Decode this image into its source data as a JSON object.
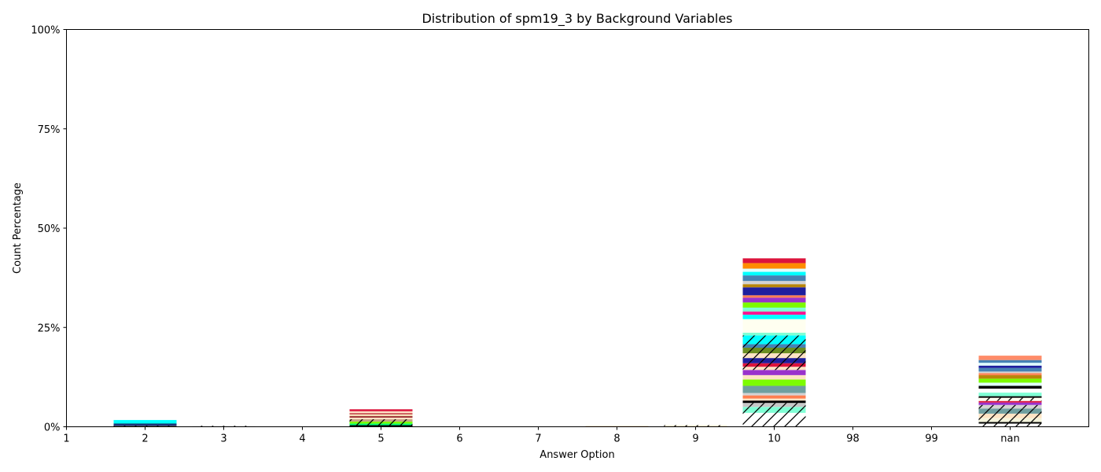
{
  "chart_data": {
    "type": "bar",
    "stacked": true,
    "title": "Distribution of spm19_3 by Background Variables",
    "xlabel": "Answer Option",
    "ylabel": "Count Percentage",
    "x_ticks": [
      "1",
      "2",
      "3",
      "4",
      "5",
      "6",
      "7",
      "8",
      "9",
      "10",
      "98",
      "99",
      "nan"
    ],
    "y_ticks": [
      "0%",
      "25%",
      "50%",
      "75%",
      "100%"
    ],
    "ylim": [
      0,
      100
    ],
    "grid": false,
    "bars": [
      {
        "category": "2",
        "segments": [
          {
            "value": 0.3,
            "color": "#555555",
            "hatch": true
          },
          {
            "value": 0.3,
            "color": "#1f3a93"
          },
          {
            "value": 0.2,
            "color": "#0a1a4a"
          },
          {
            "value": 0.9,
            "color": "#00ffff"
          }
        ]
      },
      {
        "category": "3",
        "segments": [
          {
            "value": 0.25,
            "color": "#f5f5f5",
            "hatch": true
          }
        ]
      },
      {
        "category": "5",
        "segments": [
          {
            "value": 0.4,
            "color": "#000000",
            "hatch": true
          },
          {
            "value": 0.4,
            "color": "#00ff7f",
            "hatch": true
          },
          {
            "value": 0.5,
            "color": "#7cfc00",
            "hatch": true
          },
          {
            "value": 0.6,
            "color": "#c4a484",
            "hatch": true
          },
          {
            "value": 0.4,
            "color": "#ffe4c4"
          },
          {
            "value": 0.4,
            "color": "#9b2d30"
          },
          {
            "value": 0.4,
            "color": "#f5deb3"
          },
          {
            "value": 0.4,
            "color": "#cd5c5c"
          },
          {
            "value": 0.4,
            "color": "#ffe4c4"
          },
          {
            "value": 0.5,
            "color": "#dc143c"
          }
        ]
      },
      {
        "category": "8",
        "segments": [
          {
            "value": 0.2,
            "color": "#f4c49a"
          }
        ]
      },
      {
        "category": "9",
        "segments": [
          {
            "value": 0.4,
            "color": "#fff3d6",
            "hatch": true
          }
        ]
      },
      {
        "category": "10",
        "segments": [
          {
            "value": 3.5,
            "color": "#ffffff",
            "hatch": true
          },
          {
            "value": 1.5,
            "color": "#7fffd4",
            "hatch": true
          },
          {
            "value": 1.0,
            "color": "#c8c8c8",
            "hatch": true
          },
          {
            "value": 0.6,
            "color": "#000000"
          },
          {
            "value": 0.5,
            "color": "#ffe4c4"
          },
          {
            "value": 0.8,
            "color": "#ff7f50"
          },
          {
            "value": 0.6,
            "color": "#d3d3d3"
          },
          {
            "value": 1.8,
            "color": "#6f9f9f"
          },
          {
            "value": 1.6,
            "color": "#7cfc00"
          },
          {
            "value": 1.1,
            "color": "#ffe4c4"
          },
          {
            "value": 1.3,
            "color": "#9932cc"
          },
          {
            "value": 0.8,
            "color": "#ffe4c4",
            "hatch": true
          },
          {
            "value": 0.9,
            "color": "#dc143c",
            "hatch": true
          },
          {
            "value": 1.3,
            "color": "#1e1e9e",
            "hatch": true
          },
          {
            "value": 1.2,
            "color": "#ffe4c4",
            "hatch": true
          },
          {
            "value": 1.4,
            "color": "#6b8e23",
            "hatch": true
          },
          {
            "value": 0.9,
            "color": "#4682b4",
            "hatch": true
          },
          {
            "value": 2.2,
            "color": "#00ffff",
            "hatch": true
          },
          {
            "value": 0.7,
            "color": "#7fffd4"
          },
          {
            "value": 3.4,
            "color": "#fffff0"
          },
          {
            "value": 1.1,
            "color": "#00ffff"
          },
          {
            "value": 0.8,
            "color": "#ff1493"
          },
          {
            "value": 1.0,
            "color": "#7fffd4"
          },
          {
            "value": 1.3,
            "color": "#7cfc00"
          },
          {
            "value": 1.2,
            "color": "#9932cc"
          },
          {
            "value": 0.6,
            "color": "#ff7f50"
          },
          {
            "value": 2.0,
            "color": "#1e1e9e"
          },
          {
            "value": 0.8,
            "color": "#b8860b"
          },
          {
            "value": 0.8,
            "color": "#d3d3d3"
          },
          {
            "value": 1.4,
            "color": "#4682b4"
          },
          {
            "value": 0.9,
            "color": "#00ffff"
          },
          {
            "value": 0.8,
            "color": "#e0ffff"
          },
          {
            "value": 1.4,
            "color": "#ff8c00"
          },
          {
            "value": 1.2,
            "color": "#dc143c"
          }
        ]
      },
      {
        "category": "nan",
        "segments": [
          {
            "value": 0.8,
            "color": "#ffffff",
            "hatch": true
          },
          {
            "value": 0.4,
            "color": "#000000",
            "hatch": true
          },
          {
            "value": 1.0,
            "color": "#f5f5dc",
            "hatch": true
          },
          {
            "value": 1.1,
            "color": "#ffe4c4",
            "hatch": true
          },
          {
            "value": 1.3,
            "color": "#6f9f9f",
            "hatch": true
          },
          {
            "value": 0.9,
            "color": "#d3d3d3",
            "hatch": true
          },
          {
            "value": 0.6,
            "color": "#9932cc"
          },
          {
            "value": 0.4,
            "color": "#dc143c"
          },
          {
            "value": 0.8,
            "color": "#fffff0",
            "hatch": true
          },
          {
            "value": 0.4,
            "color": "#000000"
          },
          {
            "value": 0.9,
            "color": "#7fffd4"
          },
          {
            "value": 1.0,
            "color": "#ffffff"
          },
          {
            "value": 0.7,
            "color": "#000000"
          },
          {
            "value": 0.8,
            "color": "#e0ffff"
          },
          {
            "value": 1.0,
            "color": "#7cfc00"
          },
          {
            "value": 0.9,
            "color": "#b8860b"
          },
          {
            "value": 0.5,
            "color": "#ff7f50"
          },
          {
            "value": 0.4,
            "color": "#d3d3d3"
          },
          {
            "value": 0.9,
            "color": "#4682b4"
          },
          {
            "value": 0.6,
            "color": "#1e1e9e"
          },
          {
            "value": 0.7,
            "color": "#e0ffff"
          },
          {
            "value": 0.7,
            "color": "#4682b4"
          },
          {
            "value": 1.1,
            "color": "#ff8c69"
          }
        ]
      }
    ]
  }
}
